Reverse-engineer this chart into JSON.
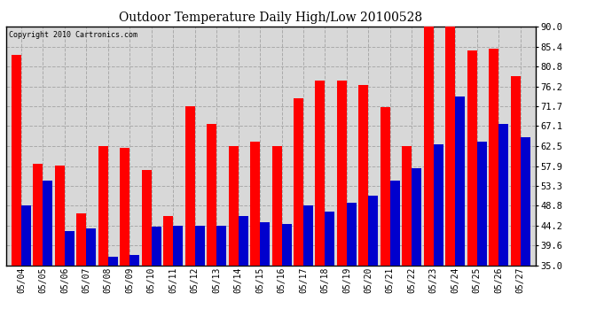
{
  "title": "Outdoor Temperature Daily High/Low 20100528",
  "copyright": "Copyright 2010 Cartronics.com",
  "dates": [
    "05/04",
    "05/05",
    "05/06",
    "05/07",
    "05/08",
    "05/09",
    "05/10",
    "05/11",
    "05/12",
    "05/13",
    "05/14",
    "05/15",
    "05/16",
    "05/17",
    "05/18",
    "05/19",
    "05/20",
    "05/21",
    "05/22",
    "05/23",
    "05/24",
    "05/25",
    "05/26",
    "05/27"
  ],
  "highs": [
    83.5,
    58.5,
    58.0,
    47.0,
    62.5,
    62.0,
    57.0,
    46.5,
    71.7,
    67.5,
    62.5,
    63.5,
    62.5,
    73.5,
    77.5,
    77.5,
    76.5,
    71.5,
    62.5,
    90.0,
    90.0,
    84.5,
    85.0,
    78.5
  ],
  "lows": [
    48.8,
    54.5,
    43.0,
    43.5,
    37.0,
    37.5,
    44.0,
    44.2,
    44.2,
    44.2,
    46.5,
    45.0,
    44.5,
    48.8,
    47.5,
    49.5,
    51.0,
    54.5,
    57.5,
    63.0,
    74.0,
    63.5,
    67.5,
    64.5
  ],
  "high_color": "#ff0000",
  "low_color": "#0000cd",
  "bg_color": "#ffffff",
  "plot_bg_color": "#d8d8d8",
  "ylim": [
    35.0,
    90.0
  ],
  "yticks": [
    35.0,
    39.6,
    44.2,
    48.8,
    53.3,
    57.9,
    62.5,
    67.1,
    71.7,
    76.2,
    80.8,
    85.4,
    90.0
  ]
}
